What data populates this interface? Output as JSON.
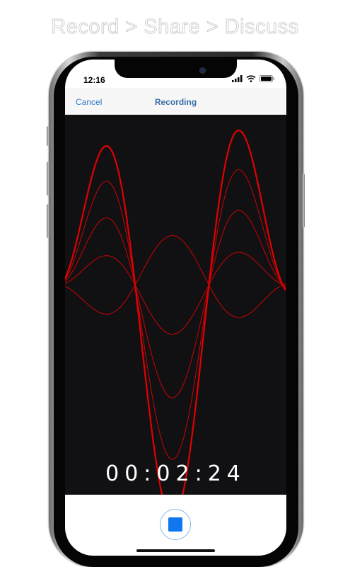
{
  "headline": "Record > Share > Discuss",
  "status_bar": {
    "time": "12:16"
  },
  "nav": {
    "cancel_label": "Cancel",
    "title": "Recording"
  },
  "timer": "00:02:24",
  "colors": {
    "waveform": "#e10000",
    "accent": "#1177f0",
    "nav_text": "#3478c6"
  },
  "icons": {
    "wifi": "wifi-icon",
    "battery": "battery-icon",
    "signal": "signal-icon",
    "stop": "stop-icon"
  }
}
